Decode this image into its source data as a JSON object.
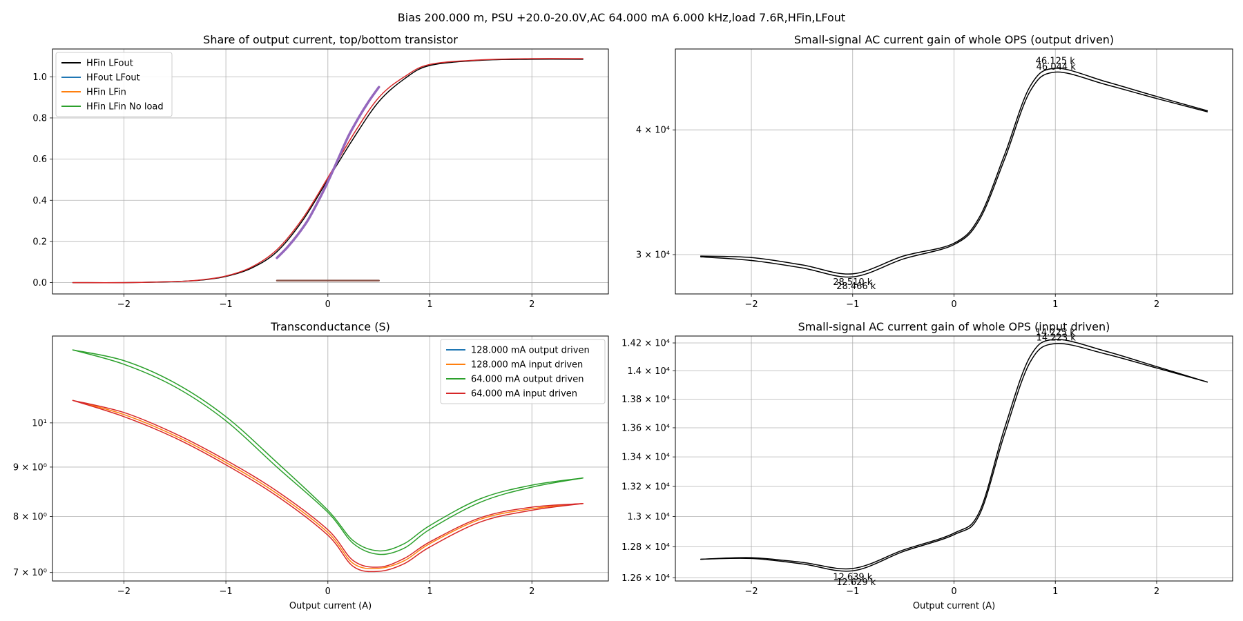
{
  "figure": {
    "suptitle": "Bias 200.000 m, PSU +20.0-20.0V,AC 64.000 mA 6.000 kHz,load 7.6R,HFin,LFout"
  },
  "colors": {
    "black": "#000000",
    "blue": "#1f77b4",
    "orange": "#ff7f0e",
    "green": "#2ca02c",
    "red": "#d62728",
    "purple": "#9467bd",
    "brown": "#8c564b",
    "grid": "#b0b0b0"
  },
  "chart_data": [
    {
      "id": "share",
      "type": "line",
      "title": "Share of output current, top/bottom transistor",
      "xlabel": "",
      "ylabel": "",
      "xlim": [
        -2.7,
        2.75
      ],
      "ylim": [
        -0.055,
        1.135
      ],
      "xscale": "linear",
      "yscale": "linear",
      "grid": true,
      "legend_position": "top-left",
      "xticks": [
        -2,
        -1,
        0,
        1,
        2
      ],
      "xtick_labels": [
        "−2",
        "−1",
        "0",
        "1",
        "2"
      ],
      "yticks": [
        0.0,
        0.2,
        0.4,
        0.6,
        0.8,
        1.0
      ],
      "ytick_labels": [
        "0.0",
        "0.2",
        "0.4",
        "0.6",
        "0.8",
        "1.0"
      ],
      "legend": [
        {
          "label": "HFin LFout",
          "color": "black"
        },
        {
          "label": "HFout LFout",
          "color": "blue"
        },
        {
          "label": "HFin LFin",
          "color": "orange"
        },
        {
          "label": "HFin LFin No load",
          "color": "green"
        }
      ],
      "series": [
        {
          "color": "black",
          "width": 1.5,
          "x": [
            -2.5,
            -2.0,
            -1.5,
            -1.25,
            -1.0,
            -0.75,
            -0.5,
            -0.25,
            0.0,
            0.25,
            0.5,
            0.75,
            1.0,
            1.5,
            2.0,
            2.5
          ],
          "y": [
            0.0,
            0.0,
            0.005,
            0.012,
            0.03,
            0.07,
            0.15,
            0.3,
            0.5,
            0.7,
            0.88,
            0.99,
            1.055,
            1.08,
            1.085,
            1.085
          ]
        },
        {
          "color": "red",
          "width": 1.5,
          "x": [
            -2.5,
            -2.0,
            -1.5,
            -1.25,
            -1.0,
            -0.75,
            -0.5,
            -0.25,
            0.0,
            0.25,
            0.5,
            0.75,
            1.0,
            1.5,
            2.0,
            2.5
          ],
          "y": [
            0.0,
            0.0,
            0.005,
            0.013,
            0.032,
            0.075,
            0.16,
            0.31,
            0.51,
            0.72,
            0.9,
            1.0,
            1.06,
            1.082,
            1.088,
            1.088
          ]
        },
        {
          "color": "purple",
          "width": 3.5,
          "x": [
            -0.5,
            -0.4,
            -0.3,
            -0.2,
            -0.1,
            0.0,
            0.1,
            0.2,
            0.3,
            0.4,
            0.5
          ],
          "y": [
            0.12,
            0.17,
            0.23,
            0.3,
            0.39,
            0.49,
            0.6,
            0.71,
            0.8,
            0.88,
            0.95
          ]
        },
        {
          "color": "brown",
          "width": 2.5,
          "x": [
            -0.5,
            0.5
          ],
          "y": [
            0.01,
            0.01
          ]
        }
      ],
      "annotations": []
    },
    {
      "id": "gain_out",
      "type": "line",
      "title": "Small-signal AC current gain of whole OPS (output driven)",
      "xlabel": "",
      "ylabel": "",
      "xlim": [
        -2.75,
        2.75
      ],
      "ylim": [
        27400,
        48200
      ],
      "xscale": "linear",
      "yscale": "log",
      "grid": true,
      "legend_position": "none",
      "xticks": [
        -2,
        -1,
        0,
        1,
        2
      ],
      "xtick_labels": [
        "−2",
        "−1",
        "0",
        "1",
        "2"
      ],
      "yticks": [
        30000,
        40000
      ],
      "ytick_labels": [
        "3 × 10⁴",
        "4 × 10⁴"
      ],
      "series": [
        {
          "color": "black",
          "width": 1.5,
          "x": [
            -2.5,
            -2.0,
            -1.5,
            -1.0,
            -0.5,
            0.0,
            0.25,
            0.5,
            0.75,
            1.0,
            1.5,
            2.0,
            2.5
          ],
          "y": [
            29900,
            29800,
            29300,
            28700,
            29900,
            30800,
            32700,
            37800,
            44200,
            46100,
            44700,
            43200,
            41800
          ]
        },
        {
          "color": "black",
          "width": 1.5,
          "x": [
            -2.5,
            -2.0,
            -1.5,
            -1.0,
            -0.5,
            0.0,
            0.25,
            0.5,
            0.75,
            1.0,
            1.5,
            2.0,
            2.5
          ],
          "y": [
            29850,
            29600,
            29100,
            28500,
            29700,
            30700,
            32500,
            37400,
            43700,
            45700,
            44400,
            43000,
            41700
          ]
        }
      ],
      "annotations": [
        {
          "x": 1.0,
          "y": 46125,
          "text": "46.125 k",
          "position": "above"
        },
        {
          "x": 1.0,
          "y": 46044,
          "text": "46.044 k",
          "position": "above-offset"
        },
        {
          "x": -1.0,
          "y": 28510,
          "text": "28.510 k",
          "position": "below"
        },
        {
          "x": -1.0,
          "y": 28466,
          "text": "28.466 k",
          "position": "below-offset"
        }
      ]
    },
    {
      "id": "gm",
      "type": "line",
      "title": "Transconductance (S)",
      "xlabel": "Output current (A)",
      "ylabel": "",
      "xlim": [
        -2.7,
        2.75
      ],
      "ylim": [
        6.86,
        12.3
      ],
      "xscale": "linear",
      "yscale": "log",
      "grid": true,
      "legend_position": "top-right",
      "xticks": [
        -2,
        -1,
        0,
        1,
        2
      ],
      "xtick_labels": [
        "−2",
        "−1",
        "0",
        "1",
        "2"
      ],
      "yticks": [
        7,
        8,
        9,
        10
      ],
      "ytick_labels": [
        "7 × 10⁰",
        "8 × 10⁰",
        "9 × 10⁰",
        "10¹"
      ],
      "legend": [
        {
          "label": "128.000 mA output driven",
          "color": "blue"
        },
        {
          "label": "128.000 mA input driven",
          "color": "orange"
        },
        {
          "label": "64.000 mA output driven",
          "color": "green"
        },
        {
          "label": "64.000 mA input driven",
          "color": "red"
        }
      ],
      "series": [
        {
          "color": "green",
          "width": 1.5,
          "x": [
            -2.5,
            -2.0,
            -1.5,
            -1.0,
            -0.5,
            0.0,
            0.25,
            0.5,
            0.75,
            1.0,
            1.5,
            2.0,
            2.5
          ],
          "y": [
            11.9,
            11.6,
            11.0,
            10.15,
            9.1,
            8.12,
            7.55,
            7.37,
            7.5,
            7.83,
            8.35,
            8.62,
            8.77
          ]
        },
        {
          "color": "green",
          "width": 1.5,
          "x": [
            -2.5,
            -2.0,
            -1.5,
            -1.0,
            -0.5,
            0.0,
            0.25,
            0.5,
            0.75,
            1.0,
            1.5,
            2.0,
            2.5
          ],
          "y": [
            11.9,
            11.5,
            10.9,
            10.05,
            9.0,
            8.08,
            7.5,
            7.31,
            7.42,
            7.76,
            8.28,
            8.58,
            8.77
          ]
        },
        {
          "color": "orange",
          "width": 1.5,
          "x": [
            -2.5,
            -2.0,
            -1.5,
            -1.0,
            -0.5,
            0.0,
            0.25,
            0.5,
            0.75,
            1.0,
            1.5,
            2.0,
            2.5
          ],
          "y": [
            10.55,
            10.2,
            9.7,
            9.1,
            8.45,
            7.7,
            7.15,
            7.07,
            7.2,
            7.5,
            7.95,
            8.15,
            8.25
          ]
        },
        {
          "color": "red",
          "width": 1.5,
          "x": [
            -2.5,
            -2.0,
            -1.5,
            -1.0,
            -0.5,
            0.0,
            0.25,
            0.5,
            0.75,
            1.0,
            1.5,
            2.0,
            2.5
          ],
          "y": [
            10.55,
            10.25,
            9.75,
            9.15,
            8.5,
            7.75,
            7.2,
            7.09,
            7.24,
            7.53,
            7.98,
            8.18,
            8.25
          ]
        },
        {
          "color": "red",
          "width": 1.5,
          "x": [
            -2.5,
            -2.0,
            -1.5,
            -1.0,
            -0.5,
            0.0,
            0.25,
            0.5,
            0.75,
            1.0,
            1.5,
            2.0,
            2.5
          ],
          "y": [
            10.55,
            10.15,
            9.65,
            9.05,
            8.4,
            7.65,
            7.1,
            7.02,
            7.15,
            7.44,
            7.9,
            8.12,
            8.25
          ]
        }
      ],
      "annotations": []
    },
    {
      "id": "gain_in",
      "type": "line",
      "title": "Small-signal AC current gain of whole OPS (input driven)",
      "xlabel": "Output current (A)",
      "ylabel": "",
      "xlim": [
        -2.75,
        2.75
      ],
      "ylim": [
        12580,
        14250
      ],
      "xscale": "log",
      "yscale": "log",
      "grid": true,
      "legend_position": "none",
      "xticks": [
        -2,
        -1,
        0,
        1,
        2
      ],
      "xtick_labels": [
        "−2",
        "−1",
        "0",
        "1",
        "2"
      ],
      "yticks": [
        12600,
        12800,
        13000,
        13200,
        13400,
        13600,
        13800,
        14000,
        14200
      ],
      "ytick_labels": [
        "1.26 × 10⁴",
        "1.28 × 10⁴",
        "1.3 × 10⁴",
        "1.32 × 10⁴",
        "1.34 × 10⁴",
        "1.36 × 10⁴",
        "1.38 × 10⁴",
        "1.4 × 10⁴",
        "1.42 × 10⁴"
      ],
      "series": [
        {
          "color": "black",
          "width": 1.5,
          "x": [
            -2.5,
            -2.0,
            -1.5,
            -1.0,
            -0.5,
            0.0,
            0.25,
            0.5,
            0.75,
            1.0,
            1.5,
            2.0,
            2.5
          ],
          "y": [
            12720,
            12730,
            12700,
            12660,
            12780,
            12890,
            13030,
            13600,
            14100,
            14225,
            14140,
            14030,
            13920
          ]
        },
        {
          "color": "black",
          "width": 1.5,
          "x": [
            -2.5,
            -2.0,
            -1.5,
            -1.0,
            -0.5,
            0.0,
            0.25,
            0.5,
            0.75,
            1.0,
            1.5,
            2.0,
            2.5
          ],
          "y": [
            12720,
            12725,
            12690,
            12645,
            12770,
            12880,
            13010,
            13560,
            14060,
            14195,
            14120,
            14020,
            13920
          ]
        }
      ],
      "annotations": [
        {
          "x": 1.0,
          "y": 14225,
          "text": "14.225 k",
          "position": "above"
        },
        {
          "x": 1.0,
          "y": 14223,
          "text": "14.223 k",
          "position": "above-offset"
        },
        {
          "x": -1.0,
          "y": 12639,
          "text": "12.639 k",
          "position": "below"
        },
        {
          "x": -1.0,
          "y": 12629,
          "text": "12.629 k",
          "position": "below-offset"
        }
      ]
    }
  ]
}
